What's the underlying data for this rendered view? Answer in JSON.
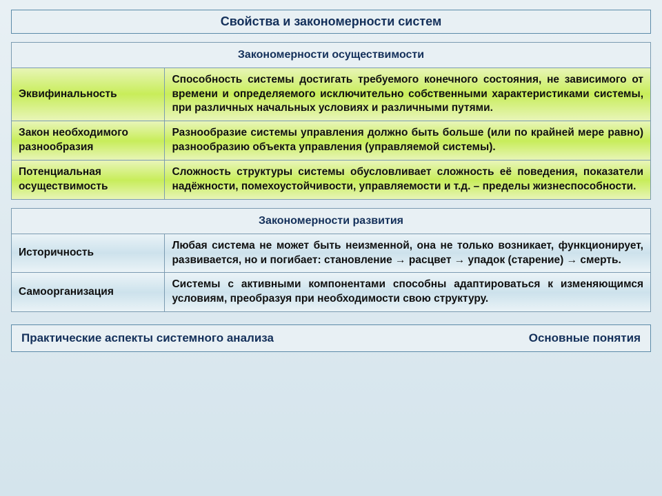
{
  "title": "Свойства и закономерности систем",
  "section1": {
    "header": "Закономерности осуществимости",
    "rows": [
      {
        "term": "Эквифинальность",
        "desc": "Способность системы достигать требуемого конечного состояния, не зависимого от времени и определяемого исключительно собственными характеристиками системы, при различных начальных условиях и различными путями."
      },
      {
        "term": "Закон необходимого разнообразия",
        "desc": "Разнообразие системы управления должно быть больше (или по крайней мере равно) разнообразию объекта управления  (управляемой системы)."
      },
      {
        "term": "Потенциальная осуществимость",
        "desc": "Сложность структуры системы обусловливает сложность её поведения, показатели надёжности, помехоустойчивости, управляемости и т.д. –  пределы жизнеспособности."
      }
    ]
  },
  "section2": {
    "header": "Закономерности развития",
    "rows": [
      {
        "term": "Историчность",
        "desc": "Любая система не может быть неизменной, она не только возникает, функционирует, развивается, но и погибает: становление → расцвет → упадок (старение)  → смерть."
      },
      {
        "term": "Самоорганизация",
        "desc": "Системы с активными компонентами способны адаптироваться к изменяющимся условиям, преобразуя при необходимости свою структуру."
      }
    ]
  },
  "footer": {
    "left": "Практические аспекты системного анализа",
    "right": "Основные понятия"
  }
}
